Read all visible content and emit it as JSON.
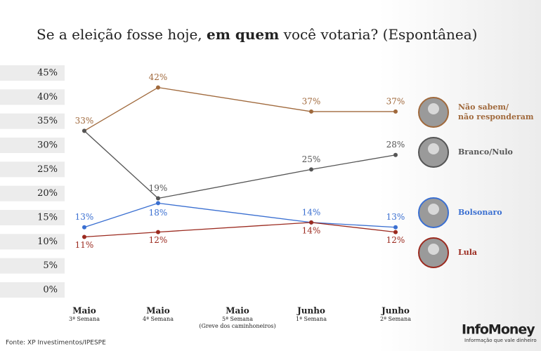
{
  "chart_data": {
    "type": "line",
    "title_parts": [
      "Se a eleição fosse hoje, ",
      "em quem",
      " você votaria? (Espontânea)"
    ],
    "categories": [
      [
        "Maio",
        "3ª Semana"
      ],
      [
        "Maio",
        "4ª Semana"
      ],
      [
        "Maio",
        "5ª Semana",
        "(Greve dos caminhoneiros)"
      ],
      [
        "Junho",
        "1ª Semana"
      ],
      [
        "Junho",
        "2ª Semana"
      ]
    ],
    "series": [
      {
        "name": "Não sabem/\nnão responderam",
        "color": "#a0693c",
        "values": [
          33,
          42,
          null,
          37,
          37
        ],
        "value_labels": [
          "33%",
          "42%",
          null,
          "37%",
          "37%"
        ]
      },
      {
        "name": "Branco/Nulo",
        "color": "#555555",
        "values": [
          33,
          19,
          null,
          25,
          28
        ],
        "value_labels": [
          null,
          "19%",
          null,
          "25%",
          "28%"
        ]
      },
      {
        "name": "Bolsonaro",
        "color": "#3a6fd1",
        "values": [
          13,
          18,
          null,
          14,
          13
        ],
        "value_labels": [
          "13%",
          "18%",
          null,
          "14%",
          "13%"
        ]
      },
      {
        "name": "Lula",
        "color": "#9b2a1f",
        "values": [
          11,
          12,
          null,
          14,
          12
        ],
        "value_labels": [
          "11%",
          "12%",
          null,
          "14%",
          "12%"
        ]
      }
    ],
    "ylim": [
      0,
      45
    ],
    "yticks": [
      {
        "value": 0,
        "label": "0%"
      },
      {
        "value": 5,
        "label": "5%"
      },
      {
        "value": 10,
        "label": "10%"
      },
      {
        "value": 15,
        "label": "15%"
      },
      {
        "value": 20,
        "label": "20%"
      },
      {
        "value": 25,
        "label": "25%"
      },
      {
        "value": 30,
        "label": "30%"
      },
      {
        "value": 35,
        "label": "35%"
      },
      {
        "value": 40,
        "label": "40%"
      },
      {
        "value": 45,
        "label": "45%"
      }
    ],
    "source": "Fonte: XP Investimentos/IPESPE",
    "brand": "InfoMoney",
    "tagline": "Informação que vale dinheiro"
  }
}
